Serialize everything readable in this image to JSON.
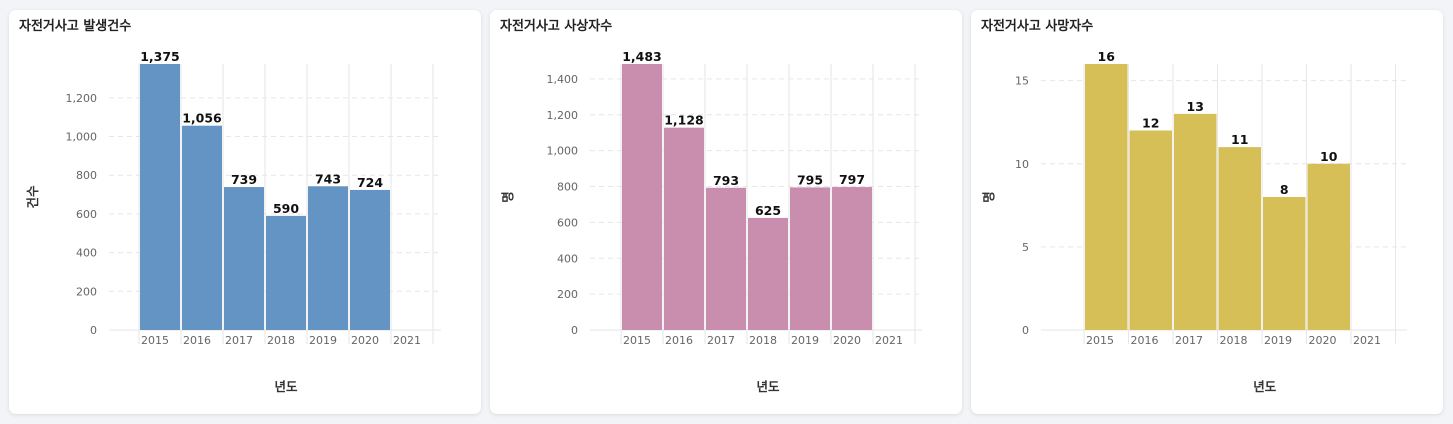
{
  "charts": [
    {
      "title": "자전거사고 발생건수",
      "color": "#6394c3",
      "chart_data": {
        "type": "bar",
        "title": "자전거사고 발생건수",
        "xlabel": "년도",
        "ylabel": "건수",
        "categories": [
          "2015",
          "2016",
          "2017",
          "2018",
          "2019",
          "2020",
          "2021"
        ],
        "values": [
          1375,
          1056,
          739,
          590,
          743,
          724,
          null
        ],
        "value_labels": [
          "1,375",
          "1,056",
          "739",
          "590",
          "743",
          "724",
          ""
        ],
        "yticks": [
          0,
          200,
          400,
          600,
          800,
          1000,
          1200
        ],
        "ytick_labels": [
          "0",
          "200",
          "400",
          "600",
          "800",
          "1,000",
          "1,200"
        ],
        "ylim": [
          0,
          1375
        ],
        "grid": true,
        "legend": false
      }
    },
    {
      "title": "자전거사고 사상자수",
      "color": "#c98eae",
      "chart_data": {
        "type": "bar",
        "title": "자전거사고 사상자수",
        "xlabel": "년도",
        "ylabel": "명",
        "categories": [
          "2015",
          "2016",
          "2017",
          "2018",
          "2019",
          "2020",
          "2021"
        ],
        "values": [
          1483,
          1128,
          793,
          625,
          795,
          797,
          null
        ],
        "value_labels": [
          "1,483",
          "1,128",
          "793",
          "625",
          "795",
          "797",
          ""
        ],
        "yticks": [
          0,
          200,
          400,
          600,
          800,
          1000,
          1200,
          1400
        ],
        "ytick_labels": [
          "0",
          "200",
          "400",
          "600",
          "800",
          "1,000",
          "1,200",
          "1,400"
        ],
        "ylim": [
          0,
          1483
        ],
        "grid": true,
        "legend": false
      }
    },
    {
      "title": "자전거사고 사망자수",
      "color": "#d6bf57",
      "chart_data": {
        "type": "bar",
        "title": "자전거사고 사망자수",
        "xlabel": "년도",
        "ylabel": "명",
        "categories": [
          "2015",
          "2016",
          "2017",
          "2018",
          "2019",
          "2020",
          "2021"
        ],
        "values": [
          16,
          12,
          13,
          11,
          8,
          10,
          null
        ],
        "value_labels": [
          "16",
          "12",
          "13",
          "11",
          "8",
          "10",
          ""
        ],
        "yticks": [
          0,
          5,
          10,
          15
        ],
        "ytick_labels": [
          "0",
          "5",
          "10",
          "15"
        ],
        "ylim": [
          0,
          16
        ],
        "grid": true,
        "legend": false
      }
    }
  ]
}
